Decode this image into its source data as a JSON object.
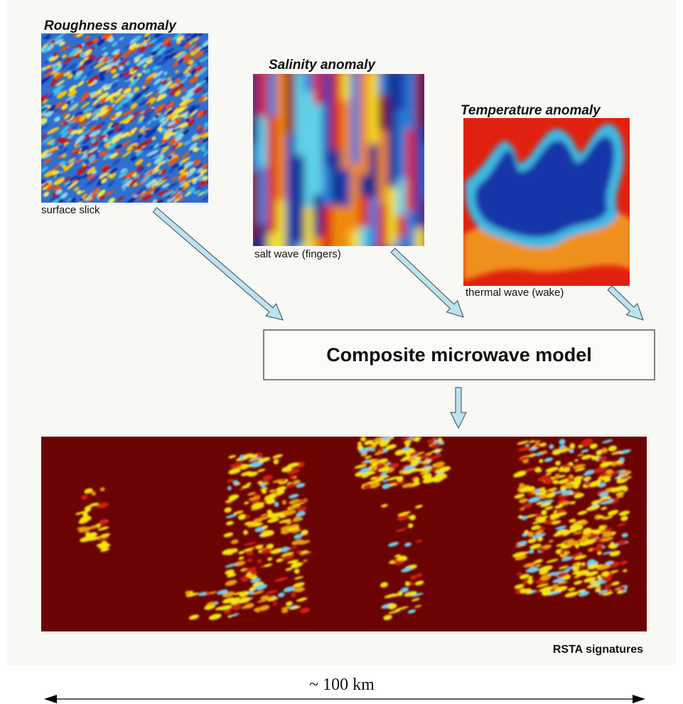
{
  "panels": [
    {
      "title": "Roughness anomaly",
      "caption": "surface slick"
    },
    {
      "title": "Salinity anomaly",
      "caption": "salt wave (fingers)"
    },
    {
      "title": "Temperature anomaly",
      "caption": "thermal wave (wake)"
    }
  ],
  "model": {
    "label": "Composite microwave model"
  },
  "output": {
    "caption": "RSTA signatures"
  },
  "scale": {
    "label": "~ 100 km"
  }
}
